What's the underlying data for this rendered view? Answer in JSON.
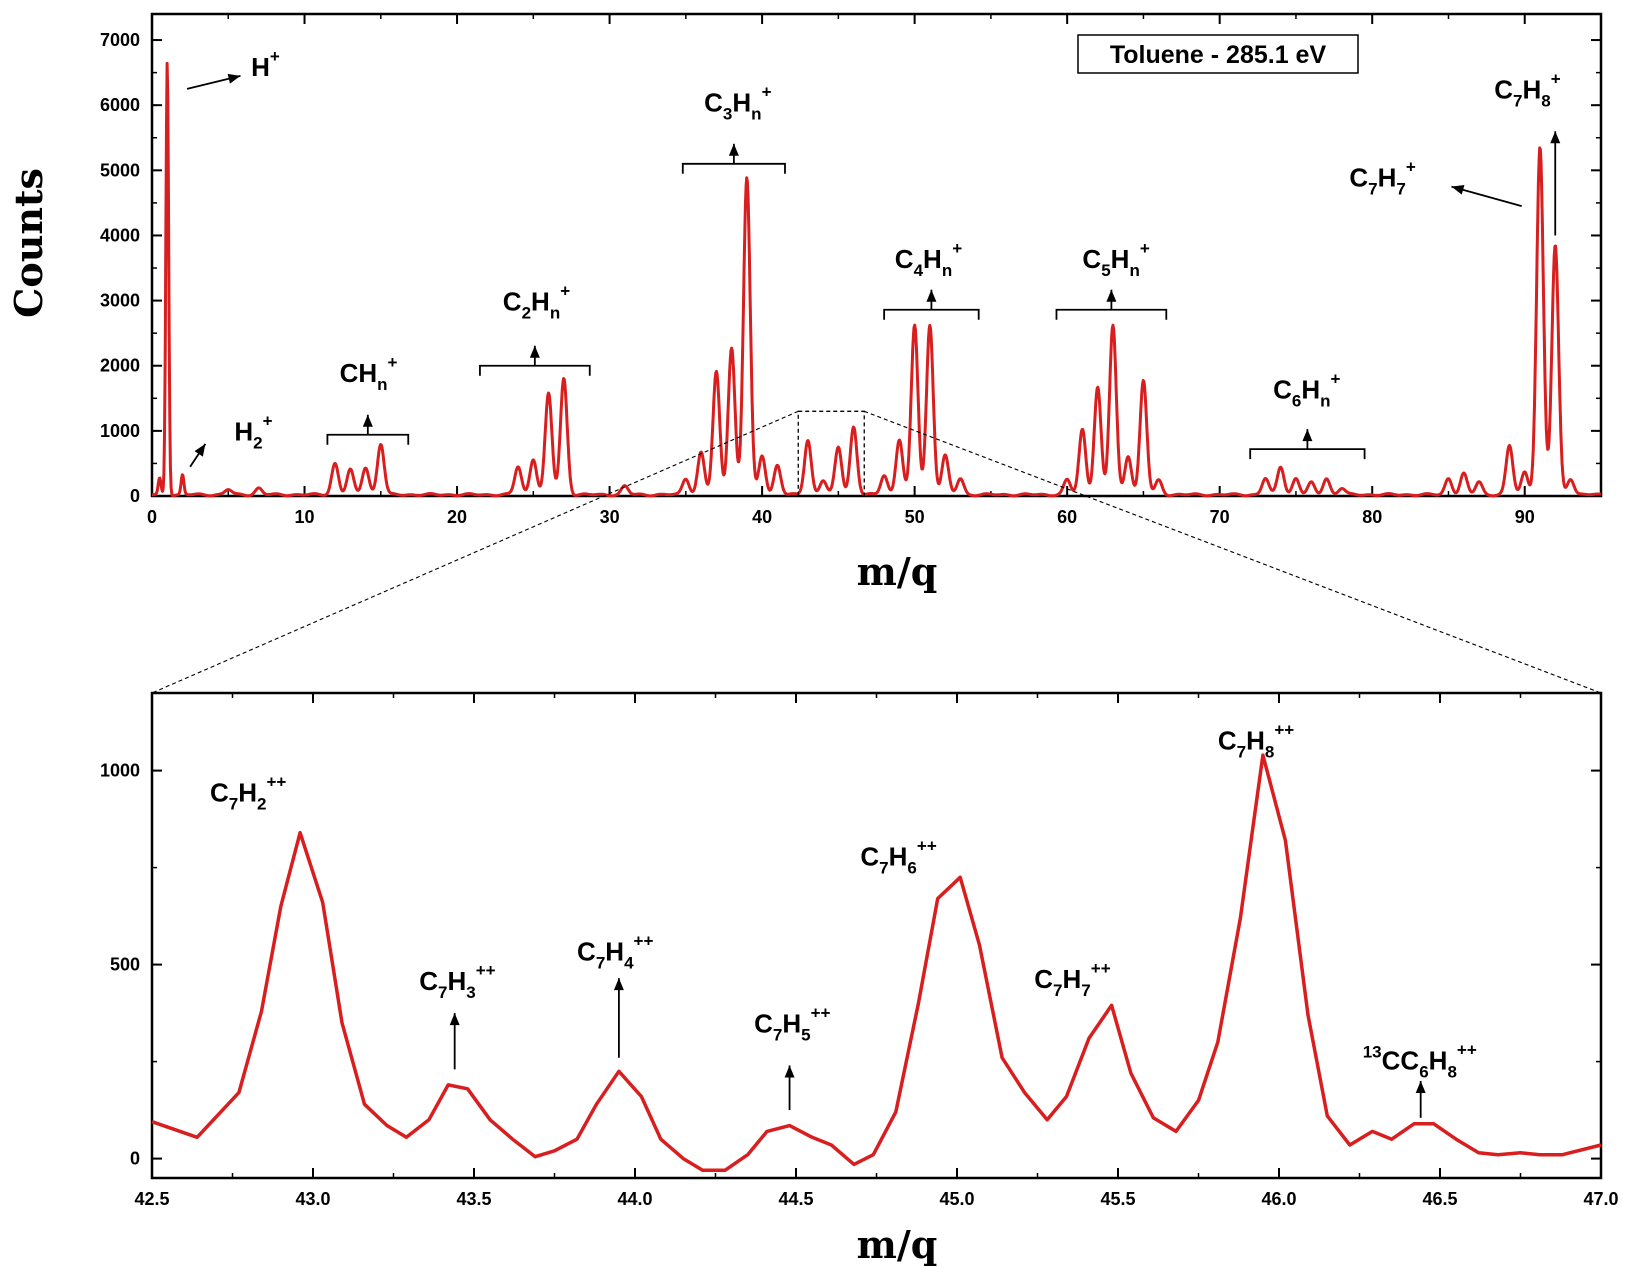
{
  "chart_data": [
    {
      "type": "line",
      "id": "overview",
      "legend_box_text": "Toluene - 285.1 eV",
      "xlabel": "m/q",
      "ylabel": "Counts",
      "xlim": [
        0,
        95
      ],
      "ylim": [
        0,
        7400
      ],
      "x_ticks": [
        0,
        10,
        20,
        30,
        40,
        50,
        60,
        70,
        80,
        90
      ],
      "y_ticks": [
        0,
        1000,
        2000,
        3000,
        4000,
        5000,
        6000,
        7000
      ],
      "color": "#d81e1e",
      "peaks": [
        {
          "x": 0.5,
          "y": 250
        },
        {
          "x": 1.0,
          "y": 6650
        },
        {
          "x": 2.0,
          "y": 300
        },
        {
          "x": 5.0,
          "y": 80
        },
        {
          "x": 7.0,
          "y": 100
        },
        {
          "x": 12,
          "y": 480
        },
        {
          "x": 13,
          "y": 380
        },
        {
          "x": 14,
          "y": 420
        },
        {
          "x": 15,
          "y": 780
        },
        {
          "x": 24,
          "y": 430
        },
        {
          "x": 25,
          "y": 550
        },
        {
          "x": 26,
          "y": 1550
        },
        {
          "x": 27,
          "y": 1780
        },
        {
          "x": 31,
          "y": 130
        },
        {
          "x": 35,
          "y": 250
        },
        {
          "x": 36,
          "y": 650
        },
        {
          "x": 37,
          "y": 1880
        },
        {
          "x": 38,
          "y": 2260
        },
        {
          "x": 39,
          "y": 4870
        },
        {
          "x": 40,
          "y": 600
        },
        {
          "x": 41,
          "y": 450
        },
        {
          "x": 43,
          "y": 840
        },
        {
          "x": 44,
          "y": 220
        },
        {
          "x": 45,
          "y": 730
        },
        {
          "x": 46,
          "y": 1040
        },
        {
          "x": 48,
          "y": 300
        },
        {
          "x": 49,
          "y": 850
        },
        {
          "x": 50,
          "y": 2600
        },
        {
          "x": 51,
          "y": 2600
        },
        {
          "x": 52,
          "y": 600
        },
        {
          "x": 53,
          "y": 250
        },
        {
          "x": 60,
          "y": 230
        },
        {
          "x": 61,
          "y": 1000
        },
        {
          "x": 62,
          "y": 1650
        },
        {
          "x": 63,
          "y": 2600
        },
        {
          "x": 64,
          "y": 600
        },
        {
          "x": 65,
          "y": 1750
        },
        {
          "x": 66,
          "y": 220
        },
        {
          "x": 73,
          "y": 250
        },
        {
          "x": 74,
          "y": 430
        },
        {
          "x": 75,
          "y": 250
        },
        {
          "x": 76,
          "y": 180
        },
        {
          "x": 77,
          "y": 250
        },
        {
          "x": 78,
          "y": 100
        },
        {
          "x": 85,
          "y": 250
        },
        {
          "x": 86,
          "y": 320
        },
        {
          "x": 87,
          "y": 200
        },
        {
          "x": 89,
          "y": 750
        },
        {
          "x": 90,
          "y": 350
        },
        {
          "x": 91,
          "y": 5330
        },
        {
          "x": 92,
          "y": 3830
        },
        {
          "x": 93,
          "y": 250
        }
      ],
      "group_labels": [
        {
          "base": "H",
          "sub": "",
          "sup": "+",
          "x": 6.5,
          "y": 6450
        },
        {
          "base": "H",
          "sub": "2",
          "sup": "+",
          "x": 5.4,
          "y": 850
        },
        {
          "base": "CH",
          "sub": "n",
          "sup": "+",
          "x": 12.3,
          "y": 1750
        },
        {
          "base": "C",
          "sub": "2",
          "base2": "H",
          "sub2": "n",
          "sup": "+",
          "x": 23.0,
          "y": 2850
        },
        {
          "base": "C",
          "sub": "3",
          "base2": "H",
          "sub2": "n",
          "sup": "+",
          "x": 36.2,
          "y": 5900
        },
        {
          "base": "C",
          "sub": "4",
          "base2": "H",
          "sub2": "n",
          "sup": "+",
          "x": 48.7,
          "y": 3500
        },
        {
          "base": "C",
          "sub": "5",
          "base2": "H",
          "sub2": "n",
          "sup": "+",
          "x": 61.0,
          "y": 3500
        },
        {
          "base": "C",
          "sub": "6",
          "base2": "H",
          "sub2": "n",
          "sup": "+",
          "x": 73.5,
          "y": 1500
        },
        {
          "base": "C",
          "sub": "7",
          "base2": "H",
          "sub2": "7",
          "sup": "+",
          "x": 78.5,
          "y": 4750
        },
        {
          "base": "C",
          "sub": "7",
          "base2": "H",
          "sub2": "8",
          "sup": "+",
          "x": 88.0,
          "y": 6100
        }
      ]
    },
    {
      "type": "line",
      "id": "zoom",
      "xlabel": "m/q",
      "ylabel": "",
      "xlim": [
        42.5,
        47.0
      ],
      "ylim": [
        -50,
        1200
      ],
      "x_ticks": [
        42.5,
        43.0,
        43.5,
        44.0,
        44.5,
        45.0,
        45.5,
        46.0,
        46.5,
        47.0
      ],
      "x_tick_labels": [
        "42.5",
        "43.0",
        "43.5",
        "44.0",
        "44.5",
        "45.0",
        "45.5",
        "46.0",
        "46.5",
        "47.0"
      ],
      "y_ticks": [
        0,
        500,
        1000
      ],
      "color": "#d81e1e",
      "x": [
        42.5,
        42.64,
        42.77,
        42.84,
        42.9,
        42.96,
        43.03,
        43.09,
        43.16,
        43.23,
        43.29,
        43.36,
        43.42,
        43.48,
        43.55,
        43.62,
        43.69,
        43.75,
        43.82,
        43.88,
        43.95,
        44.02,
        44.08,
        44.15,
        44.21,
        44.28,
        44.35,
        44.41,
        44.48,
        44.55,
        44.61,
        44.68,
        44.74,
        44.81,
        44.88,
        44.94,
        45.01,
        45.07,
        45.14,
        45.21,
        45.28,
        45.34,
        45.41,
        45.48,
        45.54,
        45.61,
        45.68,
        45.75,
        45.81,
        45.88,
        45.95,
        46.02,
        46.09,
        46.15,
        46.22,
        46.29,
        46.35,
        46.42,
        46.48,
        46.55,
        46.62,
        46.68,
        46.75,
        46.81,
        46.88,
        47.0
      ],
      "y": [
        95,
        55,
        170,
        380,
        650,
        840,
        660,
        350,
        140,
        85,
        55,
        100,
        190,
        180,
        100,
        50,
        5,
        20,
        50,
        140,
        225,
        160,
        50,
        0,
        -30,
        -30,
        10,
        70,
        85,
        55,
        35,
        -15,
        10,
        120,
        400,
        670,
        725,
        550,
        260,
        170,
        100,
        160,
        310,
        395,
        220,
        105,
        70,
        150,
        300,
        620,
        1040,
        820,
        370,
        110,
        35,
        70,
        50,
        90,
        90,
        50,
        15,
        10,
        15,
        10,
        10,
        35
      ],
      "peak_labels": [
        {
          "base": "C",
          "sub": "7",
          "base2": "H",
          "sub2": "2",
          "sup": "++",
          "x": 42.68,
          "y": 920,
          "arrow": false
        },
        {
          "base": "C",
          "sub": "7",
          "base2": "H",
          "sub2": "3",
          "sup": "++",
          "x": 43.33,
          "y": 435,
          "arrow": true,
          "arrow_x": 43.44,
          "arrow_from": 230,
          "arrow_to": 375
        },
        {
          "base": "C",
          "sub": "7",
          "base2": "H",
          "sub2": "4",
          "sup": "++",
          "x": 43.82,
          "y": 510,
          "arrow": true,
          "arrow_x": 43.95,
          "arrow_from": 260,
          "arrow_to": 465
        },
        {
          "base": "C",
          "sub": "7",
          "base2": "H",
          "sub2": "5",
          "sup": "++",
          "x": 44.37,
          "y": 325,
          "arrow": true,
          "arrow_x": 44.48,
          "arrow_from": 125,
          "arrow_to": 240
        },
        {
          "base": "C",
          "sub": "7",
          "base2": "H",
          "sub2": "6",
          "sup": "++",
          "x": 44.7,
          "y": 755,
          "arrow": false
        },
        {
          "base": "C",
          "sub": "7",
          "base2": "H",
          "sub2": "7",
          "sup": "++",
          "x": 45.24,
          "y": 440,
          "arrow": false
        },
        {
          "base": "C",
          "sub": "7",
          "base2": "H",
          "sub2": "8",
          "sup": "++",
          "x": 45.81,
          "y": 1055,
          "arrow": false
        },
        {
          "pre": "13",
          "base": "CC",
          "sub": "6",
          "base2": "H",
          "sub2": "8",
          "sup": "++",
          "x": 46.26,
          "y": 230,
          "arrow": true,
          "arrow_x": 46.44,
          "arrow_from": 105,
          "arrow_to": 200
        }
      ]
    }
  ],
  "colors": {
    "series": "#d81e1e",
    "axis": "#000000"
  }
}
